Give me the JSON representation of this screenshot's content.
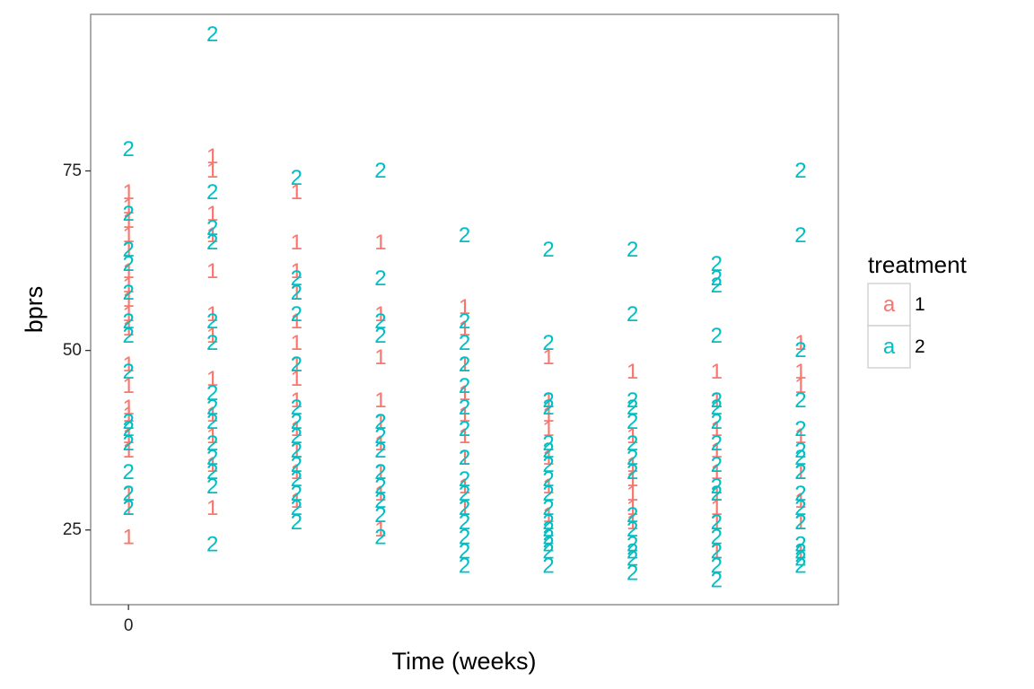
{
  "chart_data": {
    "type": "scatter",
    "point_glyph": "series label",
    "x_axis": {
      "title": "Time (weeks)",
      "ticks": [
        0
      ],
      "range": [
        -0.45,
        8.45
      ]
    },
    "y_axis": {
      "title": "bprs",
      "ticks": [
        25,
        50,
        75
      ],
      "range": [
        14.6,
        96.8
      ]
    },
    "grid": false,
    "legend": {
      "title": "treatment",
      "placement": "right",
      "key_glyph": "a",
      "entries": [
        {
          "label": "1",
          "color": "#F8766D"
        },
        {
          "label": "2",
          "color": "#00BFC4"
        }
      ]
    },
    "series": [
      {
        "name": "1",
        "color": "#F8766D",
        "points": [
          [
            0,
            24
          ],
          [
            0,
            28
          ],
          [
            0,
            30
          ],
          [
            0,
            36
          ],
          [
            0,
            38
          ],
          [
            0,
            41
          ],
          [
            0,
            42
          ],
          [
            0,
            45
          ],
          [
            0,
            48
          ],
          [
            0,
            53
          ],
          [
            0,
            55
          ],
          [
            0,
            57
          ],
          [
            0,
            59
          ],
          [
            0,
            61
          ],
          [
            0,
            64
          ],
          [
            0,
            66
          ],
          [
            0,
            68
          ],
          [
            0,
            70
          ],
          [
            0,
            72
          ],
          [
            1,
            28
          ],
          [
            1,
            34
          ],
          [
            1,
            38
          ],
          [
            1,
            41
          ],
          [
            1,
            46
          ],
          [
            1,
            52
          ],
          [
            1,
            55
          ],
          [
            1,
            61
          ],
          [
            1,
            66
          ],
          [
            1,
            69
          ],
          [
            1,
            75
          ],
          [
            1,
            77
          ],
          [
            2,
            29
          ],
          [
            2,
            33
          ],
          [
            2,
            36
          ],
          [
            2,
            39
          ],
          [
            2,
            43
          ],
          [
            2,
            46
          ],
          [
            2,
            48
          ],
          [
            2,
            51
          ],
          [
            2,
            54
          ],
          [
            2,
            58
          ],
          [
            2,
            61
          ],
          [
            2,
            65
          ],
          [
            2,
            72
          ],
          [
            3,
            25
          ],
          [
            3,
            30
          ],
          [
            3,
            33
          ],
          [
            3,
            37
          ],
          [
            3,
            40
          ],
          [
            3,
            43
          ],
          [
            3,
            49
          ],
          [
            3,
            55
          ],
          [
            3,
            65
          ],
          [
            4,
            28
          ],
          [
            4,
            31
          ],
          [
            4,
            35
          ],
          [
            4,
            38
          ],
          [
            4,
            41
          ],
          [
            4,
            44
          ],
          [
            4,
            48
          ],
          [
            4,
            53
          ],
          [
            4,
            56
          ],
          [
            5,
            27
          ],
          [
            5,
            31
          ],
          [
            5,
            35
          ],
          [
            5,
            39
          ],
          [
            5,
            41
          ],
          [
            5,
            43
          ],
          [
            5,
            49
          ],
          [
            6,
            26
          ],
          [
            6,
            28
          ],
          [
            6,
            30
          ],
          [
            6,
            32
          ],
          [
            6,
            34
          ],
          [
            6,
            38
          ],
          [
            6,
            47
          ],
          [
            7,
            22
          ],
          [
            7,
            26
          ],
          [
            7,
            28
          ],
          [
            7,
            30
          ],
          [
            7,
            33
          ],
          [
            7,
            36
          ],
          [
            7,
            39
          ],
          [
            7,
            43
          ],
          [
            7,
            47
          ],
          [
            8,
            22
          ],
          [
            8,
            26
          ],
          [
            8,
            29
          ],
          [
            8,
            33
          ],
          [
            8,
            38
          ],
          [
            8,
            45
          ],
          [
            8,
            47
          ],
          [
            8,
            51
          ]
        ]
      },
      {
        "name": "2",
        "color": "#00BFC4",
        "points": [
          [
            0,
            28
          ],
          [
            0,
            30
          ],
          [
            0,
            33
          ],
          [
            0,
            37
          ],
          [
            0,
            39
          ],
          [
            0,
            40
          ],
          [
            0,
            47
          ],
          [
            0,
            52
          ],
          [
            0,
            54
          ],
          [
            0,
            58
          ],
          [
            0,
            62
          ],
          [
            0,
            64
          ],
          [
            0,
            69
          ],
          [
            0,
            78
          ],
          [
            1,
            23
          ],
          [
            1,
            31
          ],
          [
            1,
            33
          ],
          [
            1,
            35
          ],
          [
            1,
            37
          ],
          [
            1,
            40
          ],
          [
            1,
            42
          ],
          [
            1,
            44
          ],
          [
            1,
            51
          ],
          [
            1,
            54
          ],
          [
            1,
            65
          ],
          [
            1,
            67
          ],
          [
            1,
            72
          ],
          [
            1,
            94
          ],
          [
            2,
            26
          ],
          [
            2,
            28
          ],
          [
            2,
            30
          ],
          [
            2,
            32
          ],
          [
            2,
            34
          ],
          [
            2,
            36
          ],
          [
            2,
            38
          ],
          [
            2,
            40
          ],
          [
            2,
            42
          ],
          [
            2,
            48
          ],
          [
            2,
            55
          ],
          [
            2,
            58
          ],
          [
            2,
            60
          ],
          [
            2,
            74
          ],
          [
            3,
            24
          ],
          [
            3,
            27
          ],
          [
            3,
            29
          ],
          [
            3,
            31
          ],
          [
            3,
            33
          ],
          [
            3,
            36
          ],
          [
            3,
            38
          ],
          [
            3,
            40
          ],
          [
            3,
            52
          ],
          [
            3,
            54
          ],
          [
            3,
            60
          ],
          [
            3,
            75
          ],
          [
            4,
            20
          ],
          [
            4,
            22
          ],
          [
            4,
            24
          ],
          [
            4,
            26
          ],
          [
            4,
            28
          ],
          [
            4,
            30
          ],
          [
            4,
            32
          ],
          [
            4,
            35
          ],
          [
            4,
            39
          ],
          [
            4,
            42
          ],
          [
            4,
            45
          ],
          [
            4,
            48
          ],
          [
            4,
            51
          ],
          [
            4,
            54
          ],
          [
            4,
            66
          ],
          [
            5,
            20
          ],
          [
            5,
            22
          ],
          [
            5,
            23
          ],
          [
            5,
            24
          ],
          [
            5,
            25
          ],
          [
            5,
            26
          ],
          [
            5,
            28
          ],
          [
            5,
            30
          ],
          [
            5,
            32
          ],
          [
            5,
            34
          ],
          [
            5,
            36
          ],
          [
            5,
            37
          ],
          [
            5,
            42
          ],
          [
            5,
            43
          ],
          [
            5,
            51
          ],
          [
            5,
            64
          ],
          [
            6,
            19
          ],
          [
            6,
            21
          ],
          [
            6,
            22
          ],
          [
            6,
            23
          ],
          [
            6,
            25
          ],
          [
            6,
            27
          ],
          [
            6,
            33
          ],
          [
            6,
            35
          ],
          [
            6,
            37
          ],
          [
            6,
            40
          ],
          [
            6,
            42
          ],
          [
            6,
            43
          ],
          [
            6,
            55
          ],
          [
            6,
            64
          ],
          [
            7,
            18
          ],
          [
            7,
            20
          ],
          [
            7,
            22
          ],
          [
            7,
            24
          ],
          [
            7,
            26
          ],
          [
            7,
            30
          ],
          [
            7,
            31
          ],
          [
            7,
            34
          ],
          [
            7,
            37
          ],
          [
            7,
            40
          ],
          [
            7,
            42
          ],
          [
            7,
            43
          ],
          [
            7,
            52
          ],
          [
            7,
            59
          ],
          [
            7,
            60
          ],
          [
            7,
            62
          ],
          [
            8,
            20
          ],
          [
            8,
            21
          ],
          [
            8,
            22
          ],
          [
            8,
            23
          ],
          [
            8,
            26
          ],
          [
            8,
            28
          ],
          [
            8,
            30
          ],
          [
            8,
            33
          ],
          [
            8,
            35
          ],
          [
            8,
            36
          ],
          [
            8,
            39
          ],
          [
            8,
            43
          ],
          [
            8,
            50
          ],
          [
            8,
            66
          ],
          [
            8,
            75
          ]
        ]
      }
    ]
  }
}
